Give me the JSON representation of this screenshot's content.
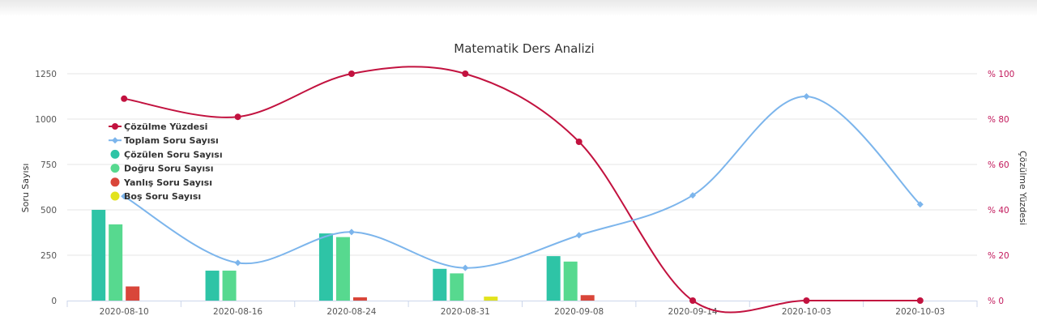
{
  "chart_data": {
    "type": "bar",
    "title": "Matematik Ders Analizi",
    "categories": [
      "2020-08-10",
      "2020-08-16",
      "2020-08-24",
      "2020-08-31",
      "2020-09-08",
      "2020-09-14",
      "2020-10-03",
      "2020-10-03"
    ],
    "ylabel": "Soru Sayısı",
    "ylabel_right": "Çözülme Yüzdesi",
    "ylim": [
      0,
      1250
    ],
    "ylim_right": [
      0,
      100
    ],
    "yticks": [
      "0",
      "250",
      "500",
      "750",
      "1000",
      "1250"
    ],
    "yticks_right": [
      "% 0",
      "% 20",
      "% 40",
      "% 60",
      "% 80",
      "% 100"
    ],
    "grid": true,
    "legend_position": "top-left",
    "series": [
      {
        "name": "Çözülme Yüzdesi",
        "type": "spline",
        "axis": "right",
        "color": "#c2123f",
        "marker": "circle",
        "values": [
          89,
          81,
          100,
          100,
          70,
          0,
          0,
          0
        ]
      },
      {
        "name": "Toplam Soru Sayısı",
        "type": "spline",
        "axis": "left",
        "color": "#7cb5ec",
        "marker": "diamond",
        "values": [
          575,
          208,
          378,
          180,
          360,
          580,
          1125,
          530
        ]
      },
      {
        "name": "Çözülen Soru Sayısı",
        "type": "column",
        "axis": "left",
        "color": "#2ec4a6",
        "marker": "dot",
        "values": [
          500,
          165,
          370,
          175,
          245,
          0,
          0,
          0
        ]
      },
      {
        "name": "Doğru Soru Sayısı",
        "type": "column",
        "axis": "left",
        "color": "#57d98f",
        "marker": "dot",
        "values": [
          420,
          165,
          350,
          150,
          215,
          0,
          0,
          0
        ]
      },
      {
        "name": "Yanlış Soru Sayısı",
        "type": "column",
        "axis": "left",
        "color": "#d9463a",
        "marker": "dot",
        "values": [
          78,
          0,
          18,
          0,
          30,
          0,
          0,
          0
        ]
      },
      {
        "name": "Boş Soru Sayısı",
        "type": "column",
        "axis": "left",
        "color": "#e2e31e",
        "marker": "dot",
        "values": [
          0,
          0,
          0,
          22,
          0,
          0,
          0,
          0
        ]
      }
    ]
  }
}
